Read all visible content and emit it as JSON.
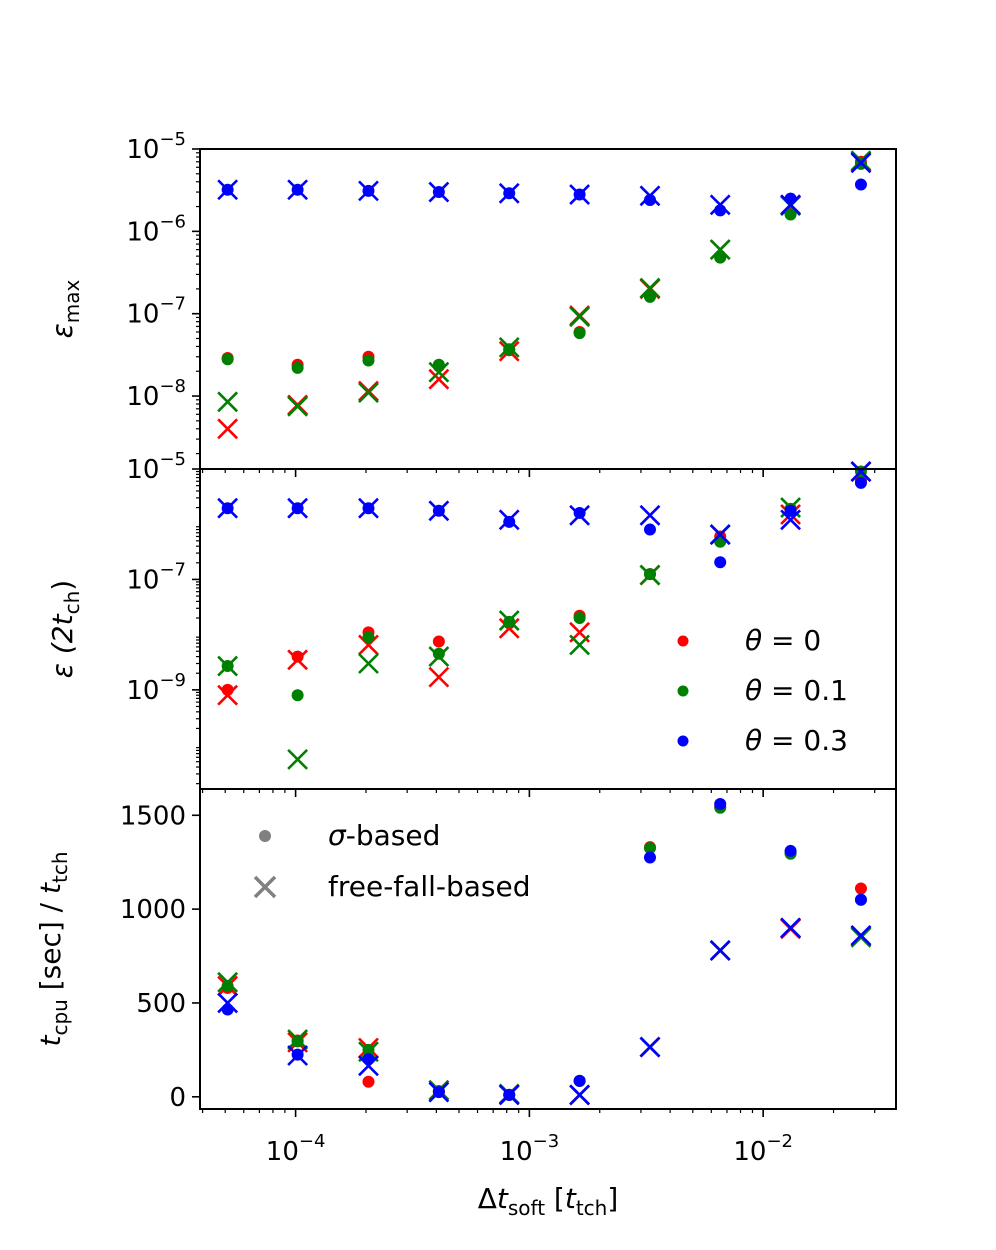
{
  "chart_data": [
    {
      "type": "scatter",
      "panel": "top",
      "ylabel": "ε_max",
      "ylabel_main": "ε",
      "ylabel_sub": "max",
      "yscale": "log",
      "ylim": [
        1.3e-09,
        1e-05
      ],
      "yticks": [
        {
          "value": 1e-05,
          "base": "10",
          "exp": "−5"
        },
        {
          "value": 1e-06,
          "base": "10",
          "exp": "−6"
        },
        {
          "value": 1e-07,
          "base": "10",
          "exp": "−7"
        },
        {
          "value": 1e-08,
          "base": "10",
          "exp": "−8"
        }
      ],
      "x": [
        5.12e-05,
        0.000102,
        0.000205,
        0.00041,
        0.00082,
        0.00164,
        0.00328,
        0.00655,
        0.0131,
        0.0262
      ],
      "series": [
        {
          "name": "θ = 0",
          "marker": "dot",
          "color": "#ff0000",
          "values": [
            2.9e-08,
            2.4e-08,
            3e-08,
            2.3e-08,
            3.6e-08,
            6e-08,
            1.65e-07,
            5e-07,
            1.7e-06,
            7e-06
          ]
        },
        {
          "name": "θ = 0",
          "marker": "x",
          "color": "#ff0000",
          "values": [
            4e-09,
            7.8e-09,
            1.15e-08,
            1.6e-08,
            3.5e-08,
            9.5e-08,
            2e-07,
            6e-07,
            2.1e-06,
            7e-06
          ]
        },
        {
          "name": "θ = 0.1",
          "marker": "dot",
          "color": "#008000",
          "values": [
            2.8e-08,
            2.2e-08,
            2.7e-08,
            2.4e-08,
            3.7e-08,
            5.8e-08,
            1.6e-07,
            4.8e-07,
            1.6e-06,
            6.6e-06
          ]
        },
        {
          "name": "θ = 0.1",
          "marker": "x",
          "color": "#008000",
          "values": [
            8.5e-09,
            7.5e-09,
            1.1e-08,
            1.95e-08,
            3.9e-08,
            9.2e-08,
            2.05e-07,
            6e-07,
            2.05e-06,
            7.2e-06
          ]
        },
        {
          "name": "θ = 0.3",
          "marker": "dot",
          "color": "#0000ff",
          "values": [
            3.2e-06,
            3.2e-06,
            3.1e-06,
            3e-06,
            2.9e-06,
            2.8e-06,
            2.4e-06,
            1.8e-06,
            2.5e-06,
            3.7e-06
          ]
        },
        {
          "name": "θ = 0.3",
          "marker": "x",
          "color": "#0000ff",
          "values": [
            3.2e-06,
            3.2e-06,
            3.1e-06,
            3e-06,
            2.9e-06,
            2.8e-06,
            2.7e-06,
            2.1e-06,
            2.1e-06,
            6.8e-06
          ]
        }
      ]
    },
    {
      "type": "scatter",
      "panel": "middle",
      "ylabel": "ε (2t_ch)",
      "ylabel_main": "ε (2",
      "ylabel_t": "t",
      "ylabel_sub": "ch",
      "ylabel_close": ")",
      "yscale": "log",
      "ylim": [
        1.6e-11,
        1e-05
      ],
      "yticks": [
        {
          "value": 1e-05,
          "base": "10",
          "exp": "−5"
        },
        {
          "value": 1e-07,
          "base": "10",
          "exp": "−7"
        },
        {
          "value": 1e-09,
          "base": "10",
          "exp": "−9"
        }
      ],
      "x": [
        5.12e-05,
        0.000102,
        0.000205,
        0.00041,
        0.00082,
        0.00164,
        0.00328,
        0.00655,
        0.0131,
        0.0262
      ],
      "series": [
        {
          "name": "θ = 0",
          "marker": "dot",
          "color": "#ff0000",
          "values": [
            1e-09,
            4e-09,
            1.1e-08,
            7.5e-09,
            1.6e-08,
            2.2e-08,
            1.25e-07,
            6e-07,
            1.9e-06,
            6.2e-06
          ]
        },
        {
          "name": "θ = 0",
          "marker": "x",
          "color": "#ff0000",
          "values": [
            8e-10,
            3.5e-09,
            6.5e-09,
            1.7e-09,
            1.3e-08,
            1.1e-08,
            1.2e-07,
            6.5e-07,
            1.5e-06,
            9e-06
          ]
        },
        {
          "name": "θ = 0.1",
          "marker": "dot",
          "color": "#008000",
          "values": [
            2.7e-09,
            8e-10,
            9e-09,
            4.5e-09,
            1.7e-08,
            2e-08,
            1.25e-07,
            4.8e-07,
            1.9e-06,
            9e-06
          ]
        },
        {
          "name": "θ = 0.1",
          "marker": "x",
          "color": "#008000",
          "values": [
            2.7e-09,
            5.5e-11,
            3e-09,
            4e-09,
            1.8e-08,
            6.5e-09,
            1.2e-07,
            6.5e-07,
            2e-06,
            9e-06
          ]
        },
        {
          "name": "θ = 0.3",
          "marker": "dot",
          "color": "#0000ff",
          "values": [
            1.95e-06,
            1.95e-06,
            1.95e-06,
            1.75e-06,
            1.1e-06,
            1.6e-06,
            8e-07,
            2.05e-07,
            1.75e-06,
            5.6e-06
          ]
        },
        {
          "name": "θ = 0.3",
          "marker": "x",
          "color": "#0000ff",
          "values": [
            1.95e-06,
            1.95e-06,
            1.95e-06,
            1.75e-06,
            1.2e-06,
            1.45e-06,
            1.45e-06,
            6.5e-07,
            1.2e-06,
            9e-06
          ]
        }
      ],
      "legend": {
        "location": "lower-right",
        "entries": [
          {
            "label": "θ = 0",
            "var": "θ",
            "rest": " = 0",
            "color": "#ff0000"
          },
          {
            "label": "θ = 0.1",
            "var": "θ",
            "rest": " = 0.1",
            "color": "#008000"
          },
          {
            "label": "θ = 0.3",
            "var": "θ",
            "rest": " = 0.3",
            "color": "#0000ff"
          }
        ]
      }
    },
    {
      "type": "scatter",
      "panel": "bottom",
      "ylabel": "t_cpu [sec] / t_tch",
      "ylabel_t1": "t",
      "ylabel_sub1": "cpu",
      "ylabel_mid": " [sec] / ",
      "ylabel_t2": "t",
      "ylabel_sub2": "tch",
      "yscale": "linear",
      "ylim": [
        -65,
        1640
      ],
      "yticks": [
        {
          "value": 1500,
          "label": "1500"
        },
        {
          "value": 1000,
          "label": "1000"
        },
        {
          "value": 500,
          "label": "500"
        },
        {
          "value": 0,
          "label": "0"
        }
      ],
      "x": [
        5.12e-05,
        0.000102,
        0.000205,
        0.00041,
        0.00082,
        0.00164,
        0.00328,
        0.00655,
        0.0131,
        0.0262
      ],
      "xlabel": "Δt_soft [t_tch]",
      "xlabel_pre": "Δ",
      "xlabel_t": "t",
      "xlabel_sub": "soft",
      "xlabel_open": " [",
      "xlabel_t2": "t",
      "xlabel_sub2": "tch",
      "xlabel_close": "]",
      "xscale": "log",
      "xlim": [
        3.9e-05,
        0.037
      ],
      "xticks": [
        {
          "value": 0.0001,
          "base": "10",
          "exp": "−4"
        },
        {
          "value": 0.001,
          "base": "10",
          "exp": "−3"
        },
        {
          "value": 0.01,
          "base": "10",
          "exp": "−2"
        }
      ],
      "series": [
        {
          "name": "θ = 0",
          "marker": "dot",
          "color": "#ff0000",
          "values": [
            580,
            300,
            80,
            30,
            10,
            85,
            1330,
            1545,
            1300,
            1110
          ]
        },
        {
          "name": "θ = 0",
          "marker": "x",
          "color": "#ff0000",
          "values": [
            590,
            290,
            260,
            35,
            15,
            10,
            265,
            780,
            895,
            855
          ]
        },
        {
          "name": "θ = 0.1",
          "marker": "dot",
          "color": "#008000",
          "values": [
            590,
            295,
            250,
            30,
            10,
            85,
            1325,
            1540,
            1295,
            1050
          ]
        },
        {
          "name": "θ = 0.1",
          "marker": "x",
          "color": "#008000",
          "values": [
            610,
            305,
            240,
            35,
            15,
            10,
            265,
            780,
            900,
            850
          ]
        },
        {
          "name": "θ = 0.3",
          "marker": "dot",
          "color": "#0000ff",
          "values": [
            465,
            225,
            200,
            25,
            10,
            85,
            1275,
            1560,
            1310,
            1050
          ]
        },
        {
          "name": "θ = 0.3",
          "marker": "x",
          "color": "#0000ff",
          "values": [
            500,
            220,
            165,
            25,
            10,
            10,
            265,
            780,
            900,
            860
          ]
        }
      ],
      "legend": {
        "location": "upper-left",
        "entries": [
          {
            "label": "σ-based",
            "var": "σ",
            "rest": "-based",
            "marker": "dot",
            "color": "#808080"
          },
          {
            "label": "free-fall-based",
            "var": "",
            "rest": "free-fall-based",
            "marker": "x",
            "color": "#808080"
          }
        ]
      }
    }
  ]
}
